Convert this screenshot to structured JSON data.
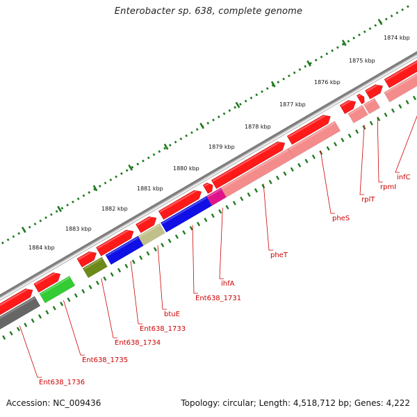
{
  "title": "Enterobacter sp. 638, complete genome",
  "footer": {
    "accession": "Accession: NC_009436",
    "summary": "Topology: circular; Length: 4,518,712 bp; Genes: 4,222"
  },
  "colors": {
    "backbone": "#8a8a8a",
    "forward_gene": "#ff1a1a",
    "reverse_gene": "#f48c8c",
    "tick": "#1f7a1f",
    "label": "#cc0000"
  },
  "scale_ticks": [
    "1874 kbp",
    "1875 kbp",
    "1876 kbp",
    "1877 kbp",
    "1878 kbp",
    "1879 kbp",
    "1880 kbp",
    "1881 kbp",
    "1882 kbp",
    "1883 kbp",
    "1884 kbp"
  ],
  "genes": [
    {
      "name": "infC",
      "color": "#f48c8c"
    },
    {
      "name": "rpmI",
      "color": "#f48c8c"
    },
    {
      "name": "rplT",
      "color": "#f48c8c"
    },
    {
      "name": "pheS",
      "color": "#f48c8c"
    },
    {
      "name": "pheT",
      "color": "#f48c8c"
    },
    {
      "name": "ihfA",
      "color": "#e0138c"
    },
    {
      "name": "Ent638_1731",
      "color": "#1010e6"
    },
    {
      "name": "btuE",
      "color": "#c2c08a"
    },
    {
      "name": "Ent638_1733",
      "color": "#1010e6"
    },
    {
      "name": "Ent638_1734",
      "color": "#6b8a1a"
    },
    {
      "name": "Ent638_1735",
      "color": "#33cc33"
    },
    {
      "name": "Ent638_1736",
      "color": "#666666"
    }
  ]
}
